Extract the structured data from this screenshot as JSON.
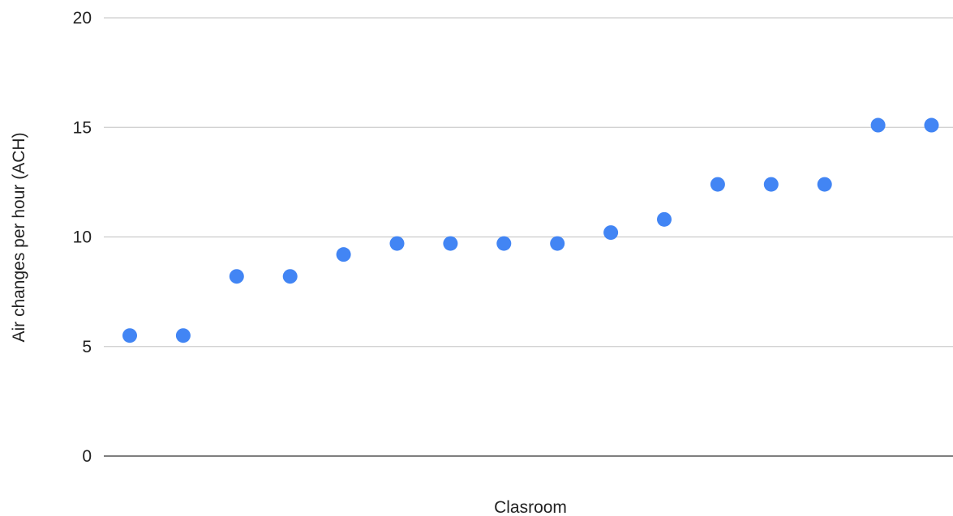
{
  "chart_data": {
    "type": "scatter",
    "title": "",
    "xlabel": "Clasroom",
    "ylabel": "Air changes per hour (ACH)",
    "ylim": [
      0,
      20
    ],
    "yticks": [
      "0",
      "5",
      "10",
      "15",
      "20"
    ],
    "grid": true,
    "series": [
      {
        "color": "#4285f4",
        "x": [
          1,
          2,
          3,
          4,
          5,
          6,
          7,
          8,
          9,
          10,
          11,
          12,
          13,
          14,
          15,
          16
        ],
        "values": [
          5.5,
          5.5,
          8.2,
          8.2,
          9.2,
          9.7,
          9.7,
          9.7,
          9.7,
          10.2,
          10.8,
          12.4,
          12.4,
          12.4,
          15.1,
          15.1
        ]
      }
    ]
  }
}
